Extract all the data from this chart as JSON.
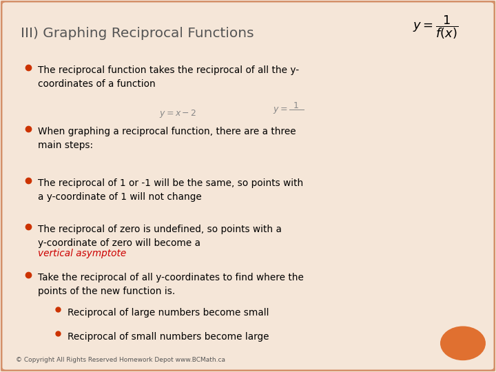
{
  "title": "III) Graphing Reciprocal Functions",
  "background_color": "#f5e6d8",
  "border_color": "#d4906a",
  "bullet_color": "#cc3300",
  "text_color": "#000000",
  "orange_circle_color": "#e07030",
  "footer": "© Copyright All Rights Reserved Homework Depot www.BCMath.ca",
  "bullets": [
    "The reciprocal function takes the reciprocal of all the y-\ncoordinates of a function",
    "When graphing a reciprocal function, there are a three\nmain steps:",
    "The reciprocal of 1 or -1 will be the same, so points with\na y-coordinate of 1 will not change",
    "The reciprocal of zero is undefined, so points with a\ny-coordinate of zero will become a {vertical asymptote}",
    "Take the reciprocal of all y-coordinates to find where the\npoints of the new function is."
  ],
  "sub_bullets": [
    "Reciprocal of large numbers become small",
    "Reciprocal of small numbers become large"
  ]
}
